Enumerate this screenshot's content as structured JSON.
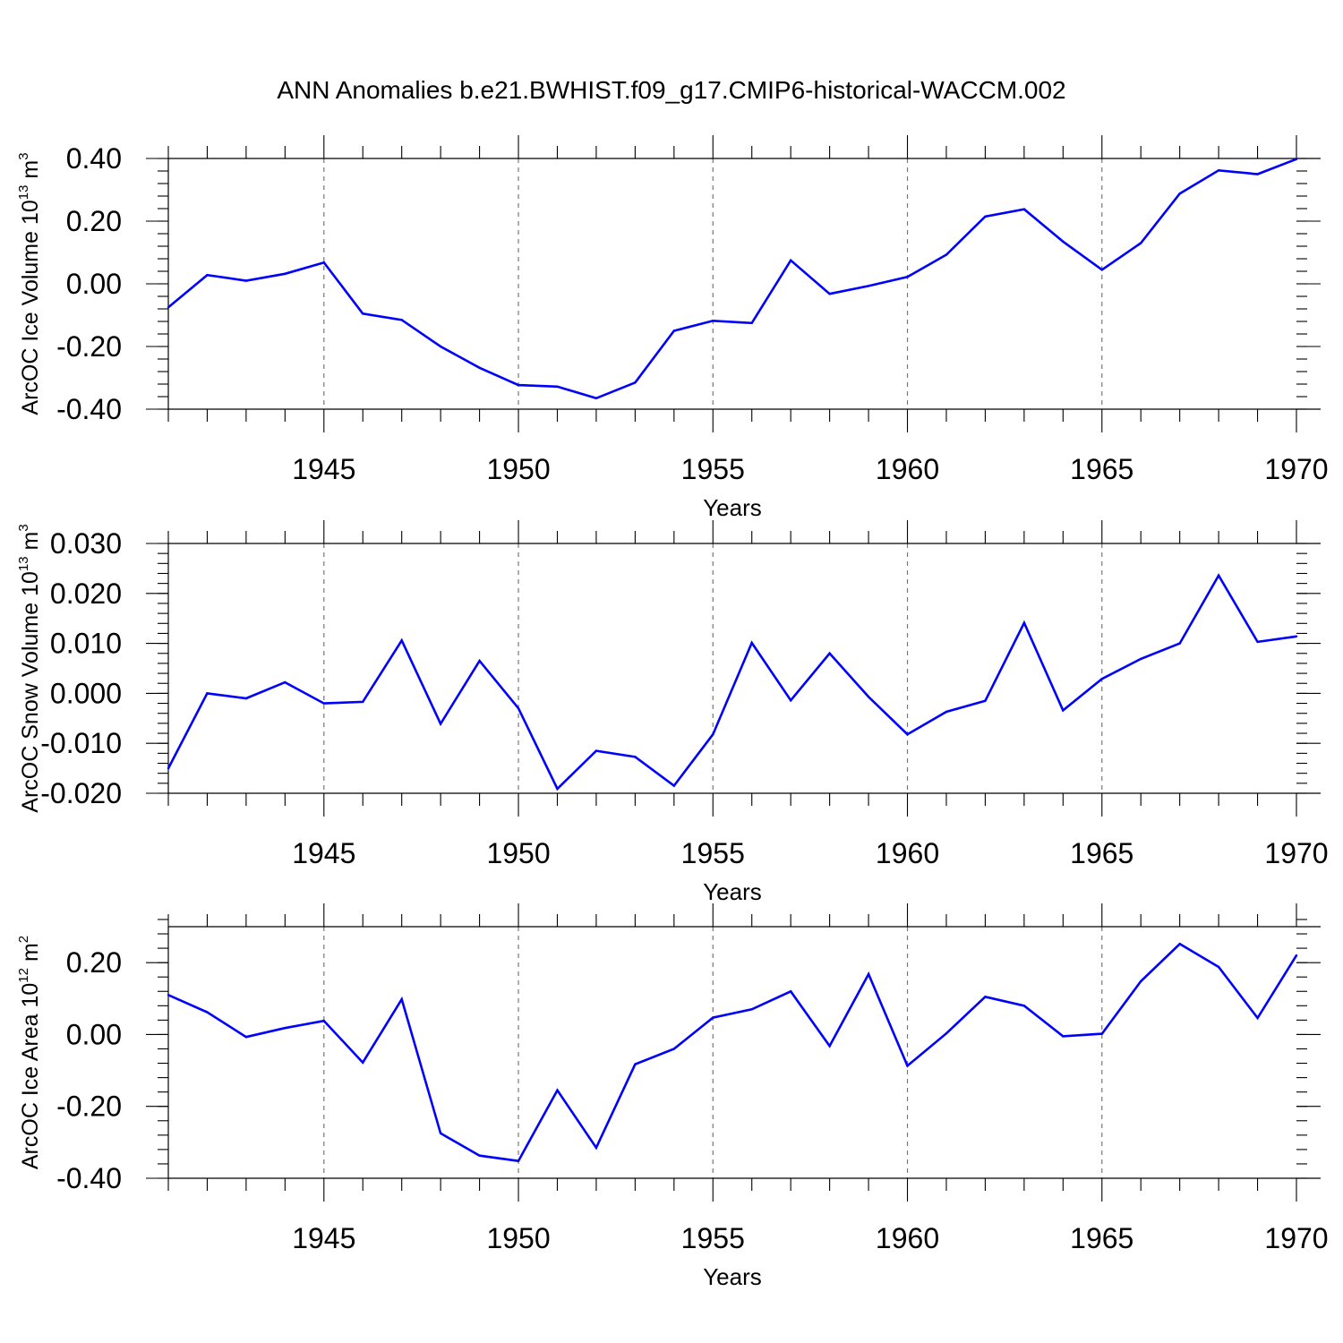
{
  "chart_data": {
    "title": "ANN Anomalies b.e21.BWHIST.f09_g17.CMIP6-historical-WACCM.002",
    "line_color": "#0000ff",
    "x": [
      1941,
      1942,
      1943,
      1944,
      1945,
      1946,
      1947,
      1948,
      1949,
      1950,
      1951,
      1952,
      1953,
      1954,
      1955,
      1956,
      1957,
      1958,
      1959,
      1960,
      1961,
      1962,
      1963,
      1964,
      1965,
      1966,
      1967,
      1968,
      1969,
      1970
    ],
    "xlim": [
      1941,
      1970
    ],
    "xticks": [
      "1945",
      "1950",
      "1955",
      "1960",
      "1965",
      "1970"
    ],
    "xtick_values": [
      1945,
      1950,
      1955,
      1960,
      1965,
      1970
    ],
    "panels": [
      {
        "type": "line",
        "xlabel": "Years",
        "ylabel_main": "ArcOC Ice Volume 10",
        "ylabel_exp": "13",
        "ylabel_unit": " m",
        "ylabel_unit_exp": "3",
        "ylim": [
          -0.4,
          0.4
        ],
        "yticks": [
          -0.4,
          -0.2,
          0.0,
          0.2,
          0.4
        ],
        "ytick_labels": [
          "-0.40",
          "-0.20",
          "0.00",
          "0.20",
          "0.40"
        ],
        "minor_step": 0.04,
        "values": [
          -0.075,
          0.028,
          0.01,
          0.032,
          0.068,
          -0.095,
          -0.115,
          -0.2,
          -0.268,
          -0.323,
          -0.328,
          -0.365,
          -0.315,
          -0.15,
          -0.118,
          -0.125,
          0.075,
          -0.032,
          -0.007,
          0.022,
          0.093,
          0.215,
          0.238,
          0.135,
          0.045,
          0.13,
          0.288,
          0.362,
          0.35,
          0.398
        ]
      },
      {
        "type": "line",
        "xlabel": "Years",
        "ylabel_main": "ArcOC Snow Volume 10",
        "ylabel_exp": "13",
        "ylabel_unit": " m",
        "ylabel_unit_exp": "3",
        "ylim": [
          -0.02,
          0.03
        ],
        "yticks": [
          -0.02,
          -0.01,
          0.0,
          0.01,
          0.02,
          0.03
        ],
        "ytick_labels": [
          "-0.020",
          "-0.010",
          "0.000",
          "0.010",
          "0.020",
          "0.030"
        ],
        "minor_step": 0.002,
        "values": [
          -0.015,
          0.0,
          -0.001,
          0.0022,
          -0.002,
          -0.0017,
          0.0106,
          -0.0061,
          0.0065,
          -0.003,
          -0.0191,
          -0.0115,
          -0.0127,
          -0.0185,
          -0.0082,
          0.0101,
          -0.0014,
          0.008,
          -0.0007,
          -0.0082,
          -0.0037,
          -0.0015,
          0.0141,
          -0.0034,
          0.0029,
          0.0069,
          0.01,
          0.0236,
          0.0103,
          0.0114
        ]
      },
      {
        "type": "line",
        "xlabel": "Years",
        "ylabel_main": "ArcOC Ice Area 10",
        "ylabel_exp": "12",
        "ylabel_unit": " m",
        "ylabel_unit_exp": "2",
        "ylim": [
          -0.4,
          0.3
        ],
        "yticks": [
          -0.4,
          -0.2,
          0.0,
          0.2
        ],
        "ytick_labels": [
          "-0.40",
          "-0.20",
          "0.00",
          "0.20"
        ],
        "minor_step": 0.04,
        "values": [
          0.11,
          0.062,
          -0.007,
          0.018,
          0.038,
          -0.078,
          0.098,
          -0.275,
          -0.337,
          -0.352,
          -0.155,
          -0.315,
          -0.083,
          -0.04,
          0.047,
          0.07,
          0.12,
          -0.032,
          0.168,
          -0.087,
          0.003,
          0.105,
          0.08,
          -0.005,
          0.002,
          0.148,
          0.252,
          0.188,
          0.046,
          0.22
        ]
      }
    ]
  }
}
